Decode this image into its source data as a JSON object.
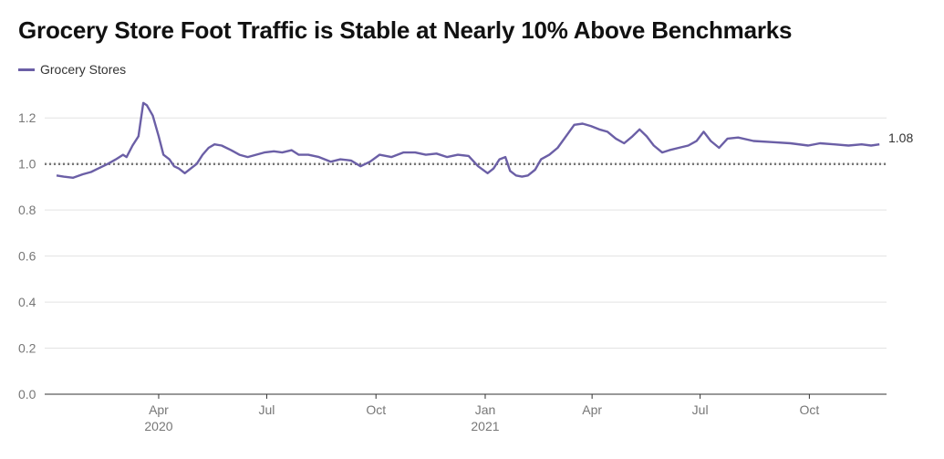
{
  "chart_data": {
    "type": "line",
    "title": "Grocery Store Foot Traffic is Stable at Nearly 10% Above Benchmarks",
    "legend": {
      "placement": "top-left"
    },
    "series": [
      {
        "name": "Grocery Stores",
        "color": "#6b5fa6",
        "end_label": "1.08",
        "points": [
          [
            "2020-01-06",
            0.95
          ],
          [
            "2020-01-12",
            0.945
          ],
          [
            "2020-01-20",
            0.94
          ],
          [
            "2020-01-28",
            0.955
          ],
          [
            "2020-02-04",
            0.965
          ],
          [
            "2020-02-10",
            0.98
          ],
          [
            "2020-02-18",
            1.0
          ],
          [
            "2020-02-25",
            1.02
          ],
          [
            "2020-03-02",
            1.04
          ],
          [
            "2020-03-05",
            1.03
          ],
          [
            "2020-03-10",
            1.08
          ],
          [
            "2020-03-15",
            1.12
          ],
          [
            "2020-03-19",
            1.265
          ],
          [
            "2020-03-22",
            1.255
          ],
          [
            "2020-03-27",
            1.21
          ],
          [
            "2020-04-01",
            1.12
          ],
          [
            "2020-04-05",
            1.04
          ],
          [
            "2020-04-10",
            1.02
          ],
          [
            "2020-04-14",
            0.99
          ],
          [
            "2020-04-18",
            0.98
          ],
          [
            "2020-04-23",
            0.96
          ],
          [
            "2020-04-28",
            0.98
          ],
          [
            "2020-05-03",
            1.0
          ],
          [
            "2020-05-08",
            1.04
          ],
          [
            "2020-05-13",
            1.07
          ],
          [
            "2020-05-18",
            1.085
          ],
          [
            "2020-05-24",
            1.08
          ],
          [
            "2020-06-01",
            1.06
          ],
          [
            "2020-06-08",
            1.04
          ],
          [
            "2020-06-15",
            1.03
          ],
          [
            "2020-06-22",
            1.04
          ],
          [
            "2020-06-29",
            1.05
          ],
          [
            "2020-07-07",
            1.055
          ],
          [
            "2020-07-14",
            1.05
          ],
          [
            "2020-07-22",
            1.06
          ],
          [
            "2020-07-28",
            1.04
          ],
          [
            "2020-08-05",
            1.04
          ],
          [
            "2020-08-14",
            1.03
          ],
          [
            "2020-08-24",
            1.01
          ],
          [
            "2020-09-01",
            1.02
          ],
          [
            "2020-09-10",
            1.015
          ],
          [
            "2020-09-18",
            0.99
          ],
          [
            "2020-09-26",
            1.01
          ],
          [
            "2020-10-04",
            1.04
          ],
          [
            "2020-10-14",
            1.03
          ],
          [
            "2020-10-24",
            1.05
          ],
          [
            "2020-11-03",
            1.05
          ],
          [
            "2020-11-12",
            1.04
          ],
          [
            "2020-11-21",
            1.045
          ],
          [
            "2020-11-30",
            1.03
          ],
          [
            "2020-12-09",
            1.04
          ],
          [
            "2020-12-18",
            1.035
          ],
          [
            "2020-12-26",
            0.99
          ],
          [
            "2021-01-03",
            0.96
          ],
          [
            "2021-01-08",
            0.98
          ],
          [
            "2021-01-13",
            1.02
          ],
          [
            "2021-01-18",
            1.03
          ],
          [
            "2021-01-22",
            0.97
          ],
          [
            "2021-01-27",
            0.95
          ],
          [
            "2021-02-01",
            0.945
          ],
          [
            "2021-02-06",
            0.95
          ],
          [
            "2021-02-12",
            0.975
          ],
          [
            "2021-02-17",
            1.02
          ],
          [
            "2021-02-24",
            1.04
          ],
          [
            "2021-03-03",
            1.07
          ],
          [
            "2021-03-10",
            1.12
          ],
          [
            "2021-03-17",
            1.17
          ],
          [
            "2021-03-24",
            1.175
          ],
          [
            "2021-03-31",
            1.165
          ],
          [
            "2021-04-07",
            1.15
          ],
          [
            "2021-04-14",
            1.14
          ],
          [
            "2021-04-21",
            1.11
          ],
          [
            "2021-04-28",
            1.09
          ],
          [
            "2021-05-05",
            1.12
          ],
          [
            "2021-05-11",
            1.15
          ],
          [
            "2021-05-17",
            1.12
          ],
          [
            "2021-05-23",
            1.08
          ],
          [
            "2021-05-30",
            1.05
          ],
          [
            "2021-06-05",
            1.06
          ],
          [
            "2021-06-13",
            1.07
          ],
          [
            "2021-06-21",
            1.08
          ],
          [
            "2021-06-28",
            1.1
          ],
          [
            "2021-07-04",
            1.14
          ],
          [
            "2021-07-10",
            1.1
          ],
          [
            "2021-07-17",
            1.07
          ],
          [
            "2021-07-24",
            1.11
          ],
          [
            "2021-08-02",
            1.115
          ],
          [
            "2021-08-15",
            1.1
          ],
          [
            "2021-08-30",
            1.095
          ],
          [
            "2021-09-15",
            1.09
          ],
          [
            "2021-09-30",
            1.08
          ],
          [
            "2021-10-10",
            1.09
          ],
          [
            "2021-10-22",
            1.085
          ],
          [
            "2021-11-03",
            1.08
          ],
          [
            "2021-11-14",
            1.085
          ],
          [
            "2021-11-22",
            1.08
          ],
          [
            "2021-11-29",
            1.085
          ]
        ]
      }
    ],
    "benchmark": {
      "value": 1.0,
      "style": "dotted",
      "color": "#777777"
    },
    "ylim": [
      0,
      1.3
    ],
    "y_ticks": [
      "0.0",
      "0.2",
      "0.4",
      "0.6",
      "0.8",
      "1.0",
      "1.2"
    ],
    "xlim": [
      "2019-12-27",
      "2021-12-05"
    ],
    "x_ticks": [
      {
        "date": "2020-04-01",
        "label": "Apr",
        "year": "2020"
      },
      {
        "date": "2020-07-01",
        "label": "Jul",
        "year": ""
      },
      {
        "date": "2020-10-01",
        "label": "Oct",
        "year": ""
      },
      {
        "date": "2021-01-01",
        "label": "Jan",
        "year": "2021"
      },
      {
        "date": "2021-04-01",
        "label": "Apr",
        "year": ""
      },
      {
        "date": "2021-07-01",
        "label": "Jul",
        "year": ""
      },
      {
        "date": "2021-10-01",
        "label": "Oct",
        "year": ""
      }
    ],
    "grid": "horizontal"
  }
}
